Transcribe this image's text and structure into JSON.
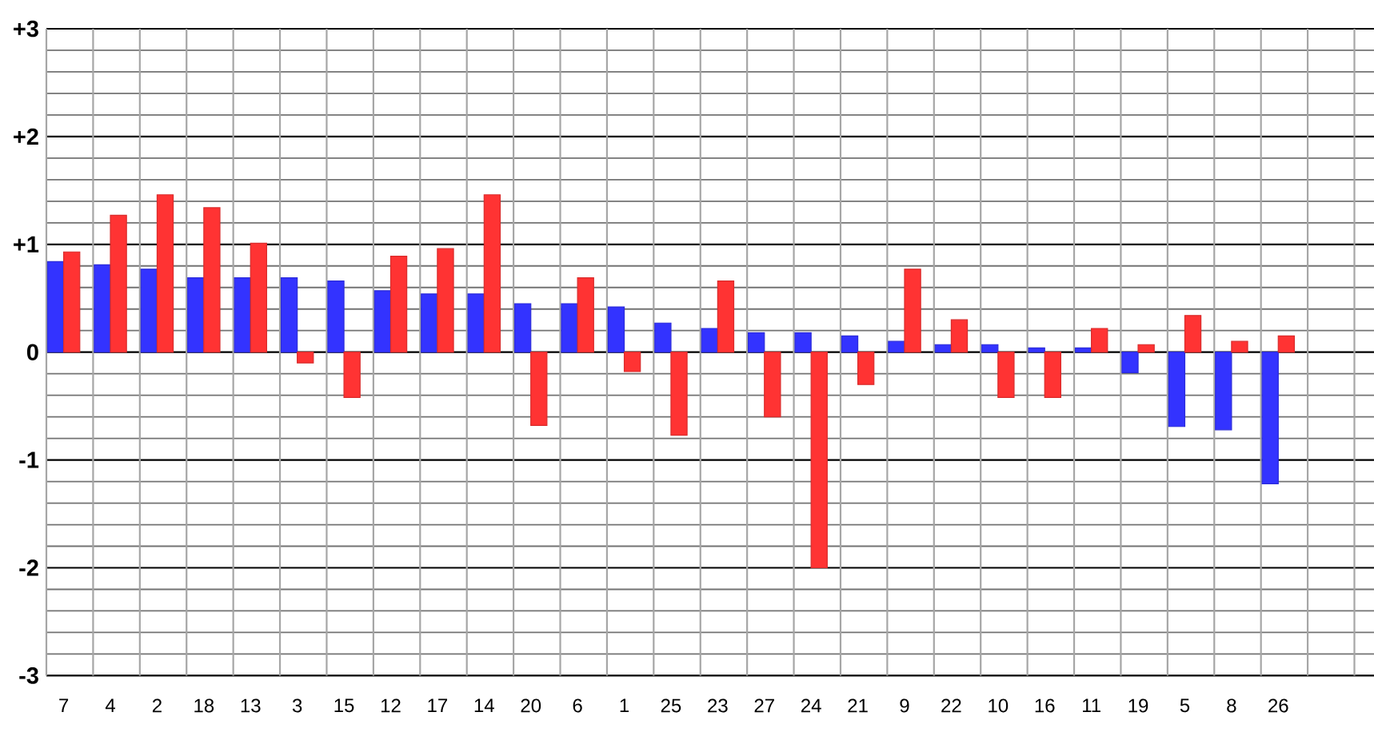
{
  "chart_data": {
    "type": "bar",
    "categories": [
      "7",
      "4",
      "2",
      "18",
      "13",
      "3",
      "15",
      "12",
      "17",
      "14",
      "20",
      "6",
      "1",
      "25",
      "23",
      "27",
      "24",
      "21",
      "9",
      "22",
      "10",
      "16",
      "11",
      "19",
      "5",
      "8",
      "26"
    ],
    "series": [
      {
        "color": "#3333ff",
        "values": [
          0.84,
          0.81,
          0.77,
          0.69,
          0.69,
          0.69,
          0.66,
          0.57,
          0.54,
          0.54,
          0.45,
          0.45,
          0.42,
          0.27,
          0.22,
          0.18,
          0.18,
          0.15,
          0.1,
          0.07,
          0.07,
          0.04,
          0.04,
          -0.19,
          -0.69,
          -0.72,
          -1.22
        ]
      },
      {
        "color": "#ff3333",
        "values": [
          0.93,
          1.27,
          1.46,
          1.34,
          1.01,
          -0.1,
          -0.42,
          0.89,
          0.96,
          1.46,
          -0.68,
          0.69,
          -0.18,
          -0.77,
          0.66,
          -0.6,
          -2.0,
          -0.3,
          0.77,
          0.3,
          -0.42,
          -0.42,
          0.22,
          0.07,
          0.34,
          0.1,
          0.15
        ]
      }
    ],
    "ylim": [
      -3,
      3
    ],
    "yticks": [
      {
        "value": 3,
        "label": "+3"
      },
      {
        "value": 2,
        "label": "+2"
      },
      {
        "value": 1,
        "label": "+1"
      },
      0,
      -1,
      -2,
      -3
    ],
    "grid": true
  }
}
